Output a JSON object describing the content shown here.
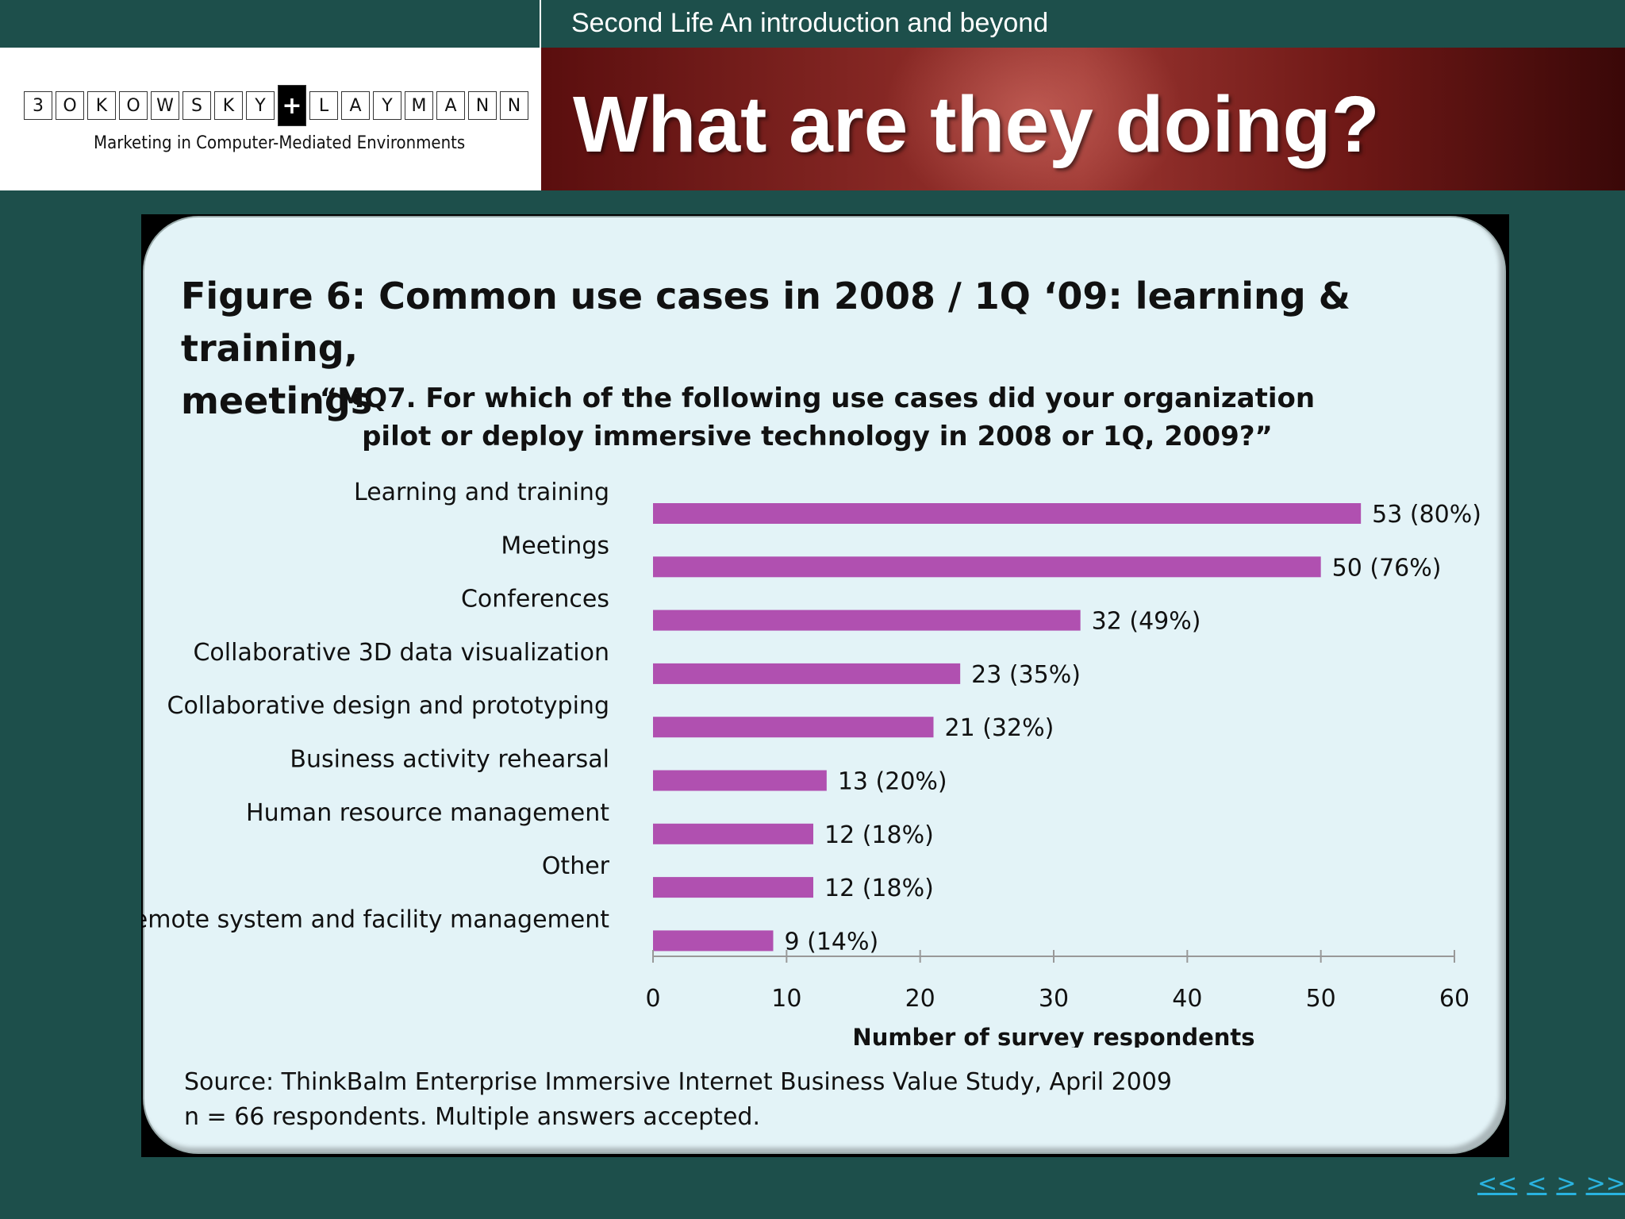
{
  "header": {
    "subtitle": "Second Life An introduction and beyond",
    "title": "What are they doing?"
  },
  "logo": {
    "letters": [
      "3",
      "O",
      "K",
      "O",
      "W",
      "S",
      "K",
      "Y",
      "+",
      "L",
      "A",
      "Y",
      "M",
      "A",
      "N",
      "N"
    ],
    "tagline": "Marketing in Computer-Mediated Environments"
  },
  "figure": {
    "title_line1": "Figure 6: Common use cases in 2008 / 1Q ‘09: learning & training,",
    "title_line2": "meetings",
    "question_line1": "“MQ7. For which of the following use cases did your organization",
    "question_line2": "pilot or deploy immersive technology in 2008 or 1Q, 2009?”",
    "source_line1": "Source: ThinkBalm Enterprise Immersive Internet Business Value Study, April 2009",
    "source_line2": "n = 66 respondents. Multiple answers accepted."
  },
  "chart_data": {
    "type": "bar",
    "orientation": "horizontal",
    "title": "Figure 6: Common use cases in 2008 / 1Q ‘09: learning & training, meetings",
    "categories": [
      "Learning and training",
      "Meetings",
      "Conferences",
      "Collaborative 3D data visualization",
      "Collaborative design and prototyping",
      "Business activity rehearsal",
      "Human resource management",
      "Other",
      "Remote system and facility management"
    ],
    "values": [
      53,
      50,
      32,
      23,
      21,
      13,
      12,
      12,
      9
    ],
    "data_labels": [
      "53 (80%)",
      "50 (76%)",
      "32 (49%)",
      "23 (35%)",
      "21 (32%)",
      "13 (20%)",
      "12 (18%)",
      "12 (18%)",
      "9 (14%)"
    ],
    "xlabel": "Number of survey respondents",
    "ylabel": "",
    "xlim": [
      0,
      60
    ],
    "xticks": [
      "0",
      "10",
      "20",
      "30",
      "40",
      "50",
      "60"
    ],
    "bar_color": "#b050b0",
    "grid": false
  },
  "nav": {
    "first": "<<",
    "prev": "<",
    "next": ">",
    "last": ">>"
  }
}
